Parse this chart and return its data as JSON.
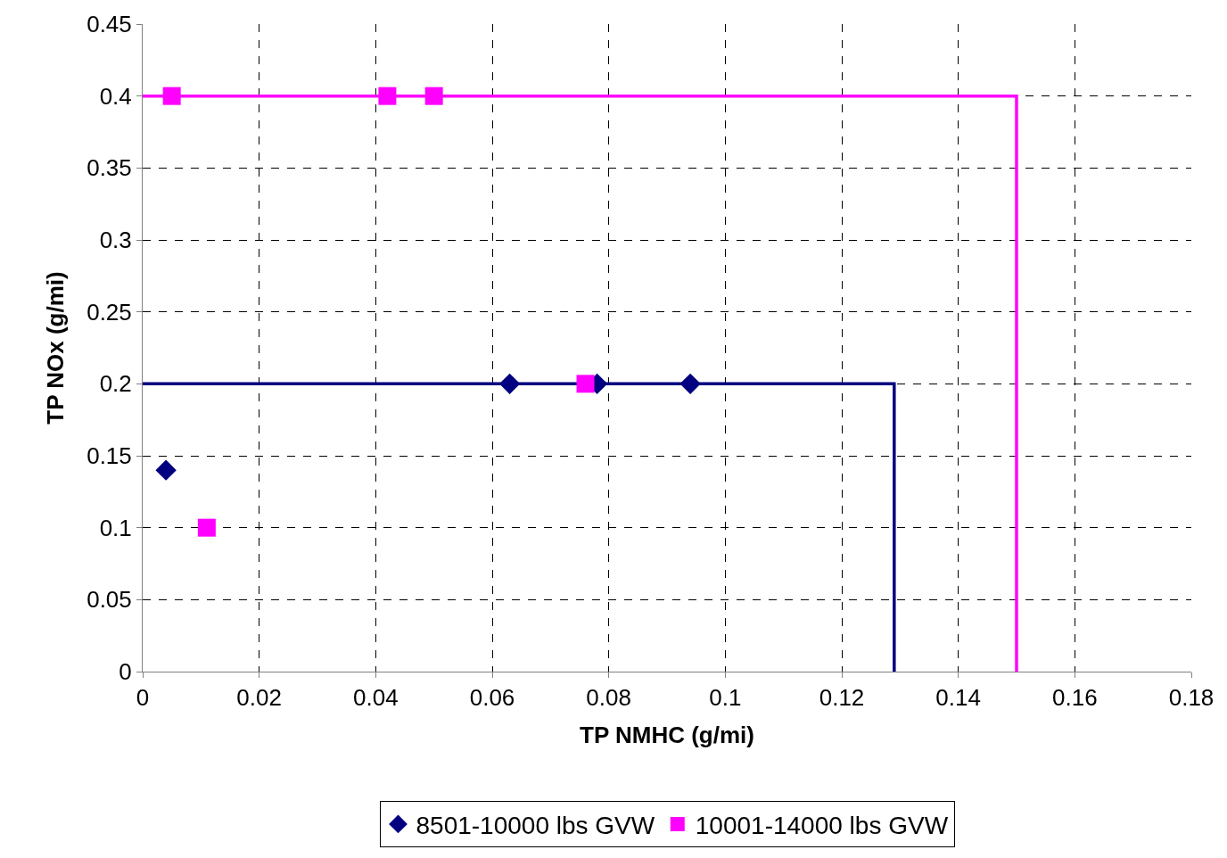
{
  "chart_data": {
    "type": "scatter",
    "xlabel": "TP NMHC (g/mi)",
    "ylabel": "TP NOx (g/mi)",
    "xlim": [
      0,
      0.18
    ],
    "xticks": [
      0,
      0.02,
      0.04,
      0.06,
      0.08,
      0.1,
      0.12,
      0.14,
      0.16,
      0.18
    ],
    "ylim": [
      0,
      0.45
    ],
    "yticks": [
      0,
      0.05,
      0.1,
      0.15,
      0.2,
      0.25,
      0.3,
      0.35,
      0.4,
      0.45
    ],
    "grid": true,
    "legend": "bottom",
    "series": [
      {
        "type": "line",
        "color": "#000080",
        "x": [
          0,
          0.129,
          0.129
        ],
        "values": [
          0.2,
          0.2,
          0
        ],
        "marker": "none",
        "line_style": "solid"
      },
      {
        "type": "line",
        "color": "#ff00ff",
        "x": [
          0,
          0.15,
          0.15
        ],
        "values": [
          0.4,
          0.4,
          0
        ],
        "marker": "none",
        "line_style": "solid"
      },
      {
        "name": "8501-10000 lbs GVW",
        "color": "#000080",
        "marker": "diamond",
        "x": [
          0.004,
          0.063,
          0.078,
          0.094
        ],
        "values": [
          0.14,
          0.2,
          0.2,
          0.2
        ]
      },
      {
        "name": "10001-14000 lbs GVW",
        "color": "#ff00ff",
        "marker": "square",
        "x": [
          0.005,
          0.042,
          0.05,
          0.076,
          0.011
        ],
        "values": [
          0.4,
          0.4,
          0.4,
          0.2,
          0.1
        ]
      }
    ]
  }
}
